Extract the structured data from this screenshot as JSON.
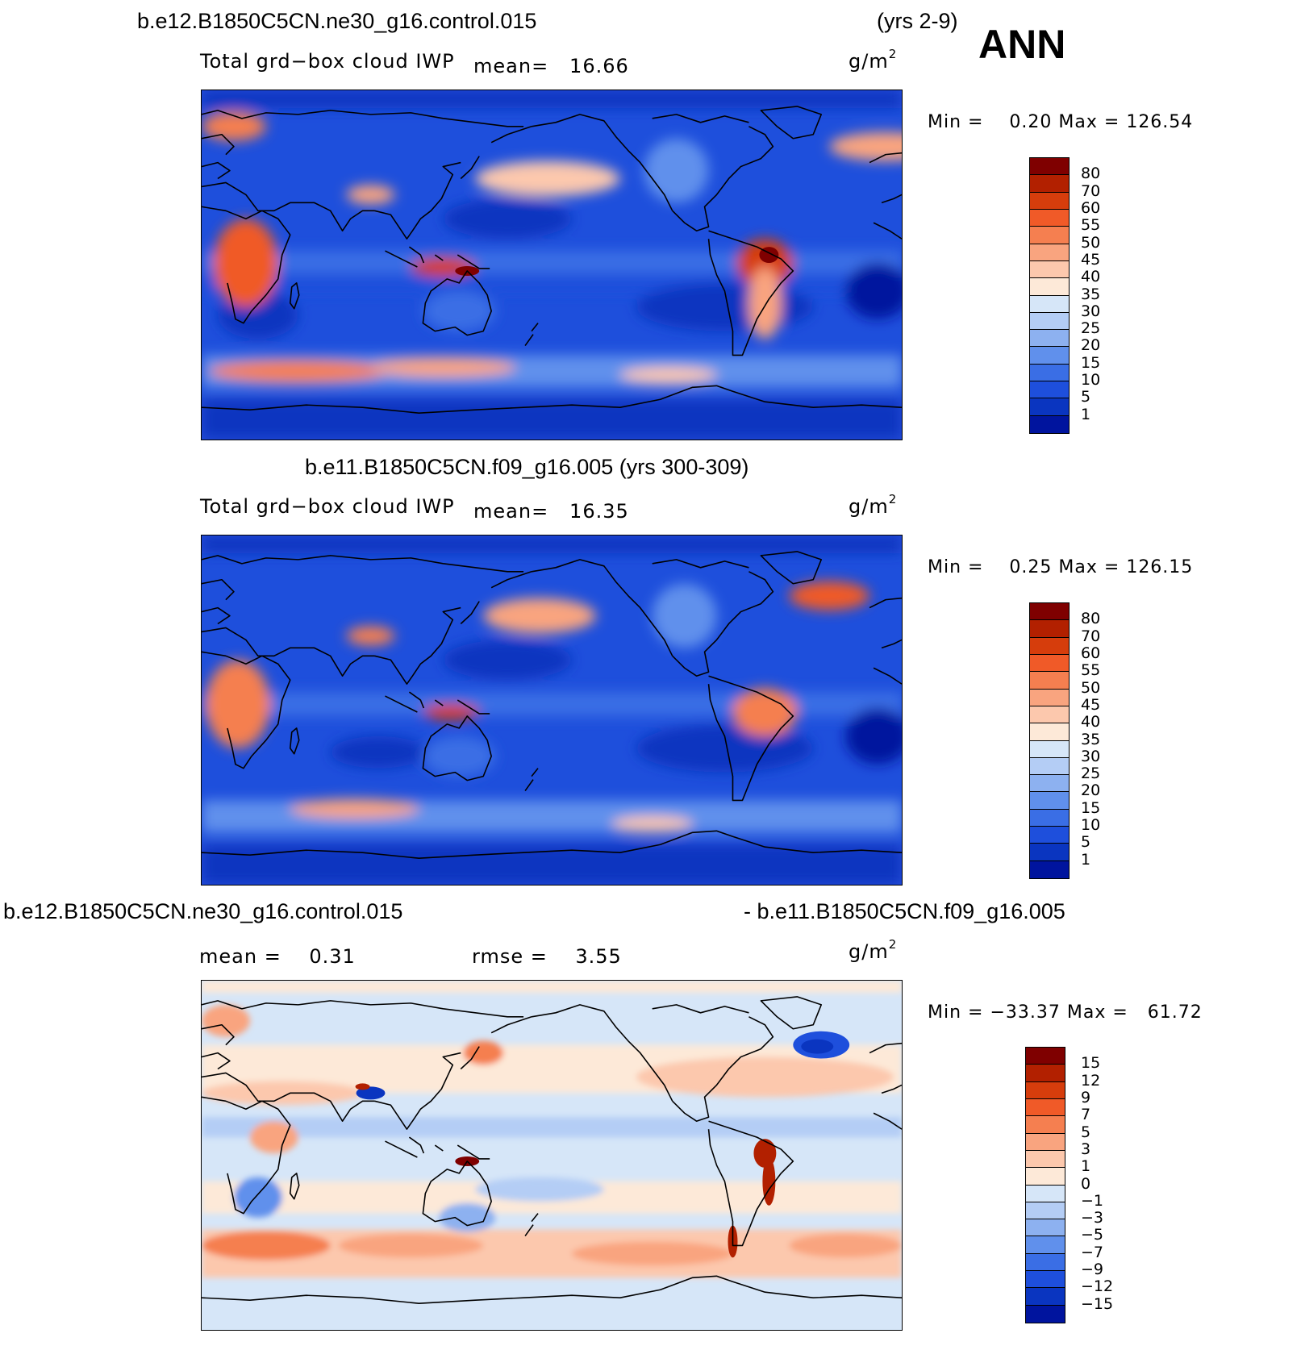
{
  "season": "ANN",
  "units_base": "g/m",
  "units_exp": "2",
  "panels": [
    {
      "case_title": "b.e12.B1850C5CN.ne30_g16.control.015",
      "years": "(yrs 2-9)",
      "variable": "Total grd−box cloud IWP",
      "mean_text": "mean=   16.66",
      "minmax_text": "Min =    0.20 Max = 126.54",
      "colorbar": {
        "labels": [
          "80",
          "70",
          "60",
          "55",
          "50",
          "45",
          "40",
          "35",
          "30",
          "25",
          "20",
          "15",
          "10",
          "5",
          "1"
        ],
        "colors": [
          "#7f0000",
          "#b22000",
          "#d63d0c",
          "#f05a28",
          "#f57f50",
          "#f9a47f",
          "#fcc8ad",
          "#fde9d8",
          "#d6e6f8",
          "#b4cdf5",
          "#8db1f0",
          "#6090ec",
          "#3a6ee5",
          "#1e4fdc",
          "#0a35c0",
          "#00149e"
        ]
      }
    },
    {
      "case_title": "b.e11.B1850C5CN.f09_g16.005 (yrs 300-309)",
      "variable": "Total grd−box cloud IWP",
      "mean_text": "mean=   16.35",
      "minmax_text": "Min =    0.25 Max = 126.15",
      "colorbar": {
        "labels": [
          "80",
          "70",
          "60",
          "55",
          "50",
          "45",
          "40",
          "35",
          "30",
          "25",
          "20",
          "15",
          "10",
          "5",
          "1"
        ],
        "colors": [
          "#7f0000",
          "#b22000",
          "#d63d0c",
          "#f05a28",
          "#f57f50",
          "#f9a47f",
          "#fcc8ad",
          "#fde9d8",
          "#d6e6f8",
          "#b4cdf5",
          "#8db1f0",
          "#6090ec",
          "#3a6ee5",
          "#1e4fdc",
          "#0a35c0",
          "#00149e"
        ]
      }
    },
    {
      "diff_left": "b.e12.B1850C5CN.ne30_g16.control.015",
      "diff_right": "- b.e11.B1850C5CN.f09_g16.005",
      "mean_text": "mean =    0.31",
      "rmse_text": "rmse =    3.55",
      "minmax_text": "Min = −33.37 Max =   61.72",
      "colorbar": {
        "labels": [
          "15",
          "12",
          "9",
          "7",
          "5",
          "3",
          "1",
          "0",
          "−1",
          "−3",
          "−5",
          "−7",
          "−9",
          "−12",
          "−15"
        ],
        "colors": [
          "#7f0000",
          "#b22000",
          "#d63d0c",
          "#f05a28",
          "#f57f50",
          "#f9a47f",
          "#fcc8ad",
          "#fde9d8",
          "#d6e6f8",
          "#b4cdf5",
          "#8db1f0",
          "#6090ec",
          "#3a6ee5",
          "#1e4fdc",
          "#0a35c0",
          "#00149e"
        ]
      }
    }
  ]
}
